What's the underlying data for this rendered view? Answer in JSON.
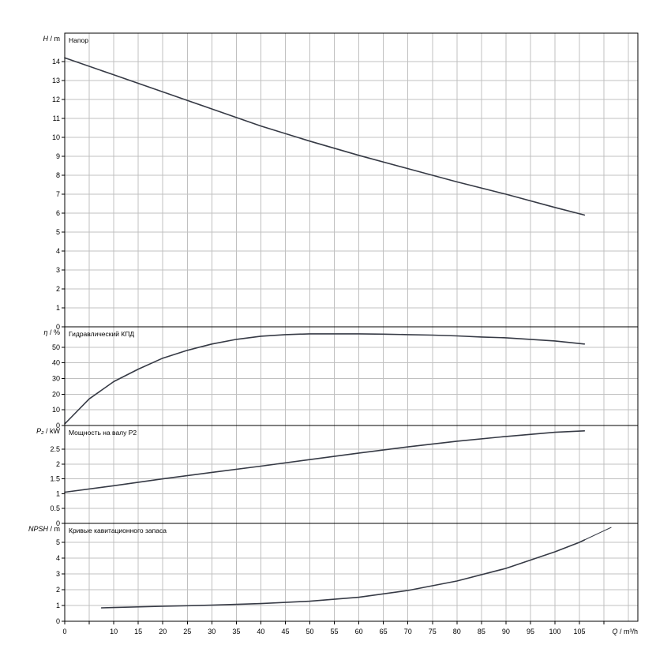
{
  "chart_data": {
    "type": "line",
    "colors": {
      "curve": "#363a45",
      "grid": "#c0c0c0",
      "frame": "#000000"
    },
    "x": {
      "label": "Q",
      "unit": "m³/h",
      "range": [
        0,
        116
      ],
      "ticks": [
        0,
        10,
        15,
        20,
        25,
        30,
        35,
        40,
        45,
        50,
        55,
        60,
        65,
        70,
        75,
        80,
        85,
        90,
        95,
        100,
        105
      ]
    },
    "panels": [
      {
        "id": "head",
        "title": "Напор",
        "ylabel": "H",
        "yunit": "m",
        "ylim": [
          0,
          15.5
        ],
        "yticks": [
          0,
          1,
          2,
          3,
          4,
          5,
          6,
          7,
          8,
          9,
          10,
          11,
          12,
          13,
          14
        ],
        "series": [
          {
            "x": [
              0,
              10,
              20,
              30,
              40,
              50,
              60,
              70,
              80,
              90,
              100,
              106
            ],
            "y": [
              14.2,
              13.3,
              12.4,
              11.5,
              10.6,
              9.8,
              9.05,
              8.35,
              7.65,
              7.0,
              6.3,
              5.9
            ]
          }
        ]
      },
      {
        "id": "efficiency",
        "title": "Гидравлический КПД",
        "ylabel": "η",
        "yunit": "%",
        "ylim": [
          0,
          63
        ],
        "yticks": [
          0,
          10,
          20,
          30,
          40,
          50
        ],
        "series": [
          {
            "x": [
              0,
              5,
              10,
              15,
              20,
              25,
              30,
              35,
              40,
              45,
              50,
              55,
              60,
              65,
              70,
              75,
              80,
              85,
              90,
              95,
              100,
              106
            ],
            "y": [
              1,
              17,
              28,
              36,
              43,
              48,
              52,
              55,
              57,
              58,
              58.5,
              58.5,
              58.5,
              58.3,
              58,
              57.7,
              57.2,
              56.5,
              56,
              55,
              54,
              52
            ]
          }
        ]
      },
      {
        "id": "power",
        "title": "Мощность на валу P2",
        "ylabel": "P₂",
        "yunit": "kW",
        "ylim": [
          0,
          3.3
        ],
        "yticks": [
          0,
          0.5,
          1,
          1.5,
          2,
          2.5
        ],
        "series": [
          {
            "x": [
              0,
              10,
              20,
              30,
              40,
              50,
              60,
              70,
              80,
              90,
              100,
              106
            ],
            "y": [
              1.05,
              1.27,
              1.5,
              1.72,
              1.93,
              2.15,
              2.37,
              2.58,
              2.77,
              2.93,
              3.07,
              3.12
            ]
          }
        ]
      },
      {
        "id": "npsh",
        "title": "Кривые кавитационного запаса",
        "ylabel": "NPSH",
        "yunit": "m",
        "ylim": [
          0,
          6.2
        ],
        "yticks": [
          0,
          1,
          2,
          3,
          4,
          5
        ],
        "series": [
          {
            "x": [
              7.5,
              10,
              20,
              30,
              40,
              50,
              60,
              70,
              80,
              90,
              100,
              105,
              106
            ],
            "y": [
              0.85,
              0.87,
              0.95,
              1.02,
              1.12,
              1.27,
              1.52,
              1.95,
              2.55,
              3.35,
              4.4,
              5.0,
              5.15
            ]
          },
          {
            "x": [
              106,
              111.5
            ],
            "y": [
              5.15,
              5.95
            ],
            "style": "extrapolated"
          }
        ]
      }
    ]
  }
}
